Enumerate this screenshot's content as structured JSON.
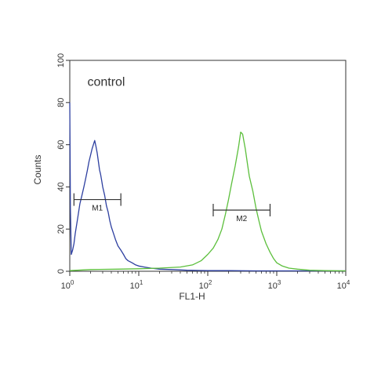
{
  "chart_data": {
    "type": "line",
    "x_scale": "log",
    "xlim": [
      1,
      10000
    ],
    "ylim": [
      0,
      100
    ],
    "xlabel": "FL1-H",
    "ylabel": "Counts",
    "x_ticks": [
      {
        "value": 1,
        "base": "10",
        "exp": "0"
      },
      {
        "value": 10,
        "base": "10",
        "exp": "1"
      },
      {
        "value": 100,
        "base": "10",
        "exp": "2"
      },
      {
        "value": 1000,
        "base": "10",
        "exp": "3"
      },
      {
        "value": 10000,
        "base": "10",
        "exp": "4"
      }
    ],
    "y_ticks": [
      "0",
      "20",
      "40",
      "60",
      "80",
      "100"
    ],
    "y_tick_values": [
      0,
      20,
      40,
      60,
      80,
      100
    ],
    "grid": false,
    "annotations": [
      {
        "text": "control",
        "x": 1.8,
        "y": 88
      }
    ],
    "series": [
      {
        "color": "#2d3fa0",
        "x": [
          1.0,
          1.02,
          1.05,
          1.1,
          1.15,
          1.2,
          1.3,
          1.4,
          1.5,
          1.6,
          1.7,
          1.8,
          1.9,
          2.0,
          2.1,
          2.2,
          2.3,
          2.4,
          2.5,
          2.6,
          2.7,
          2.8,
          2.9,
          3.0,
          3.2,
          3.4,
          3.6,
          3.8,
          4.0,
          4.3,
          4.6,
          5.0,
          5.5,
          6.0,
          6.5,
          7.0,
          8.0,
          9.0,
          10,
          12,
          15,
          20,
          30,
          50,
          100,
          200,
          500,
          1000,
          3000,
          10000
        ],
        "y": [
          80,
          30,
          8,
          10,
          13,
          18,
          25,
          32,
          36,
          40,
          44,
          48,
          52,
          55,
          58,
          60,
          62,
          59,
          56,
          52,
          48,
          46,
          43,
          40,
          36,
          31,
          28,
          24,
          21,
          18,
          15,
          12,
          10,
          8,
          6,
          5,
          4,
          3,
          2.5,
          2,
          1.5,
          1,
          0.8,
          0.5,
          0.3,
          0.3,
          0.2,
          0.2,
          0.2,
          0.2
        ]
      },
      {
        "color": "#5cbf3c",
        "x": [
          1.0,
          2,
          5,
          10,
          20,
          40,
          60,
          80,
          100,
          120,
          140,
          160,
          180,
          200,
          220,
          250,
          280,
          300,
          320,
          350,
          380,
          400,
          450,
          500,
          550,
          600,
          700,
          800,
          900,
          1000,
          1200,
          1500,
          2000,
          3000,
          5000,
          10000
        ],
        "y": [
          0.3,
          0.8,
          1.0,
          1.2,
          1.5,
          2,
          3,
          5,
          8,
          11,
          15,
          20,
          27,
          34,
          41,
          50,
          59,
          66,
          65,
          58,
          50,
          45,
          38,
          30,
          24,
          19,
          13,
          9,
          6,
          4,
          2.5,
          1.5,
          1,
          0.5,
          0.3,
          0.2
        ]
      }
    ],
    "markers": [
      {
        "label": "M1",
        "x_start": 1.15,
        "x_end": 5.5,
        "y": 34
      },
      {
        "label": "M2",
        "x_start": 120,
        "x_end": 800,
        "y": 29
      }
    ]
  }
}
